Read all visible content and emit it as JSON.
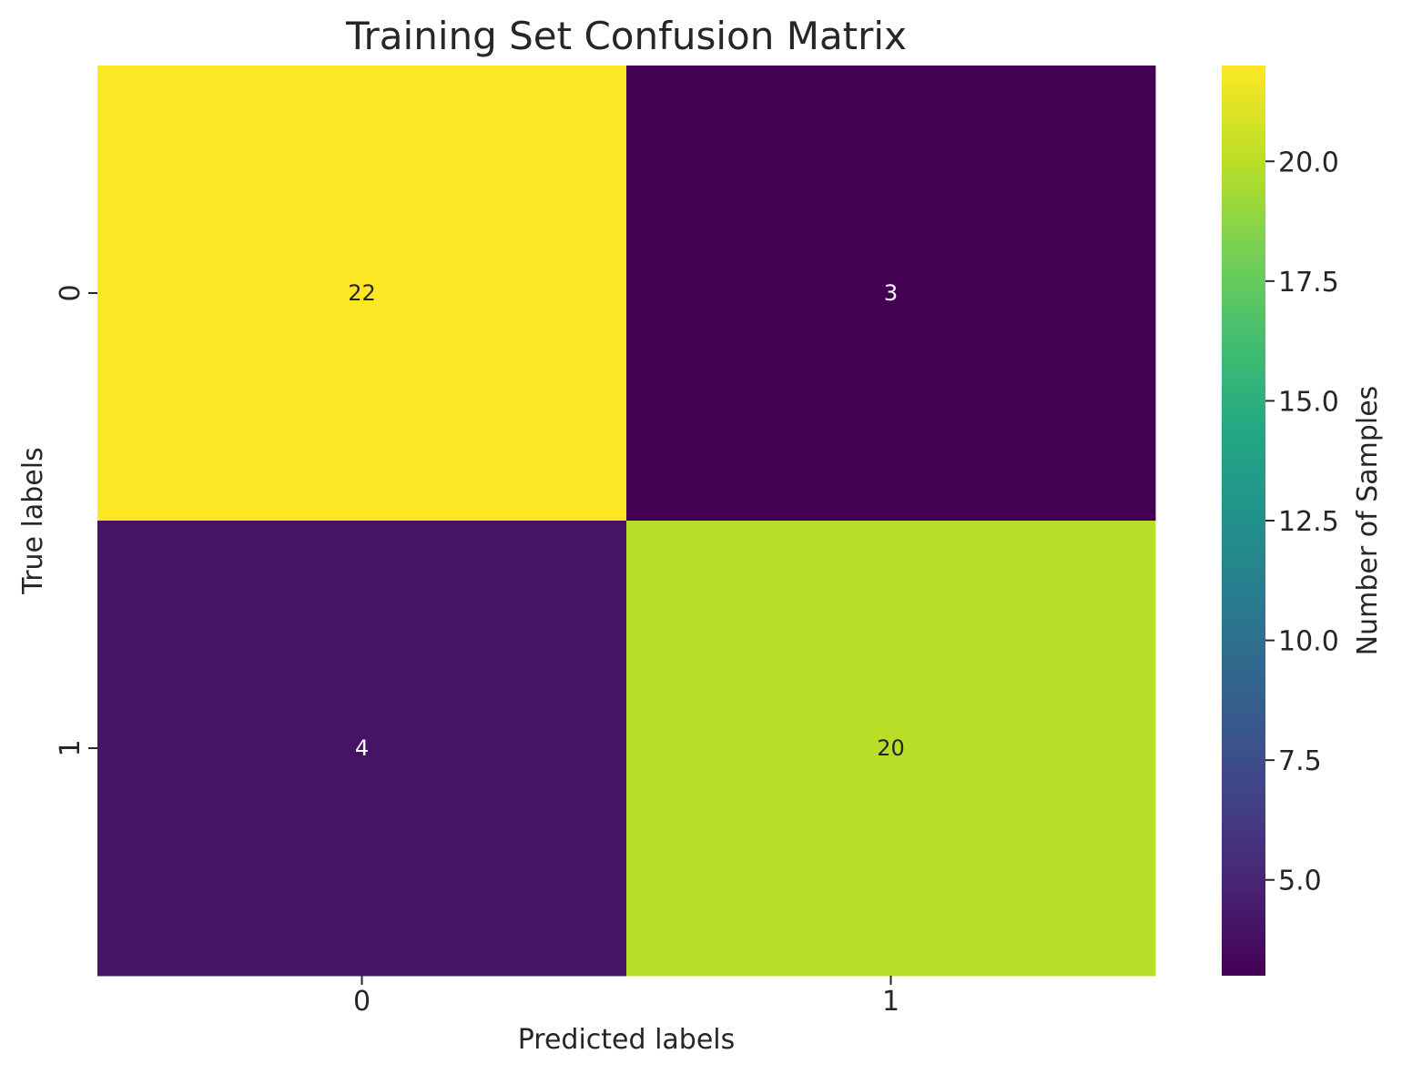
{
  "chart_data": {
    "type": "heatmap",
    "title": "Training Set Confusion Matrix",
    "xlabel": "Predicted labels",
    "ylabel": "True labels",
    "x_categories": [
      "0",
      "1"
    ],
    "y_categories": [
      "0",
      "1"
    ],
    "values": [
      [
        22,
        3
      ],
      [
        4,
        20
      ]
    ],
    "colormap": "viridis",
    "color_range": [
      3,
      22
    ],
    "colorbar": {
      "label": "Number of Samples",
      "ticks": [
        5.0,
        7.5,
        10.0,
        12.5,
        15.0,
        17.5,
        20.0
      ],
      "tick_labels": [
        "5.0",
        "7.5",
        "10.0",
        "12.5",
        "15.0",
        "17.5",
        "20.0"
      ]
    },
    "annotation_colors": {
      "light": "#ffffff",
      "dark": "#262626"
    },
    "grid": false,
    "legend": "colorbar-right"
  }
}
